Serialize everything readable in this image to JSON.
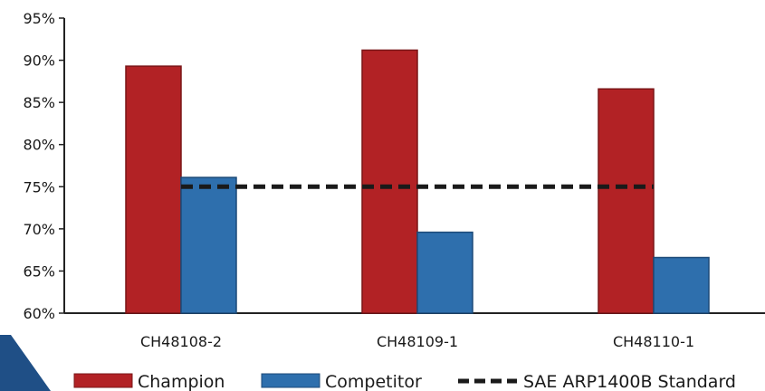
{
  "chart_data": {
    "type": "bar",
    "categories": [
      "CH48108-2",
      "CH48109-1",
      "CH48110-1"
    ],
    "series": [
      {
        "name": "Champion",
        "values": [
          89.3,
          91.2,
          86.6
        ],
        "color": "#b22225"
      },
      {
        "name": "Competitor",
        "values": [
          76.1,
          69.6,
          66.6
        ],
        "color": "#2e6fad"
      }
    ],
    "reference_line": {
      "name": "SAE ARP1400B Standard",
      "value": 75,
      "color": "#1a1a1a",
      "style": "dashed"
    },
    "ylim": [
      60,
      95
    ],
    "yticks": [
      "60%",
      "65%",
      "70%",
      "75%",
      "80%",
      "85%",
      "90%",
      "95%"
    ],
    "ytick_values": [
      60,
      65,
      70,
      75,
      80,
      85,
      90,
      95
    ],
    "title": "",
    "xlabel": "",
    "ylabel": "",
    "grid": false,
    "legend_position": "bottom"
  },
  "decoration": {
    "corner_color": "#1f4f86"
  }
}
